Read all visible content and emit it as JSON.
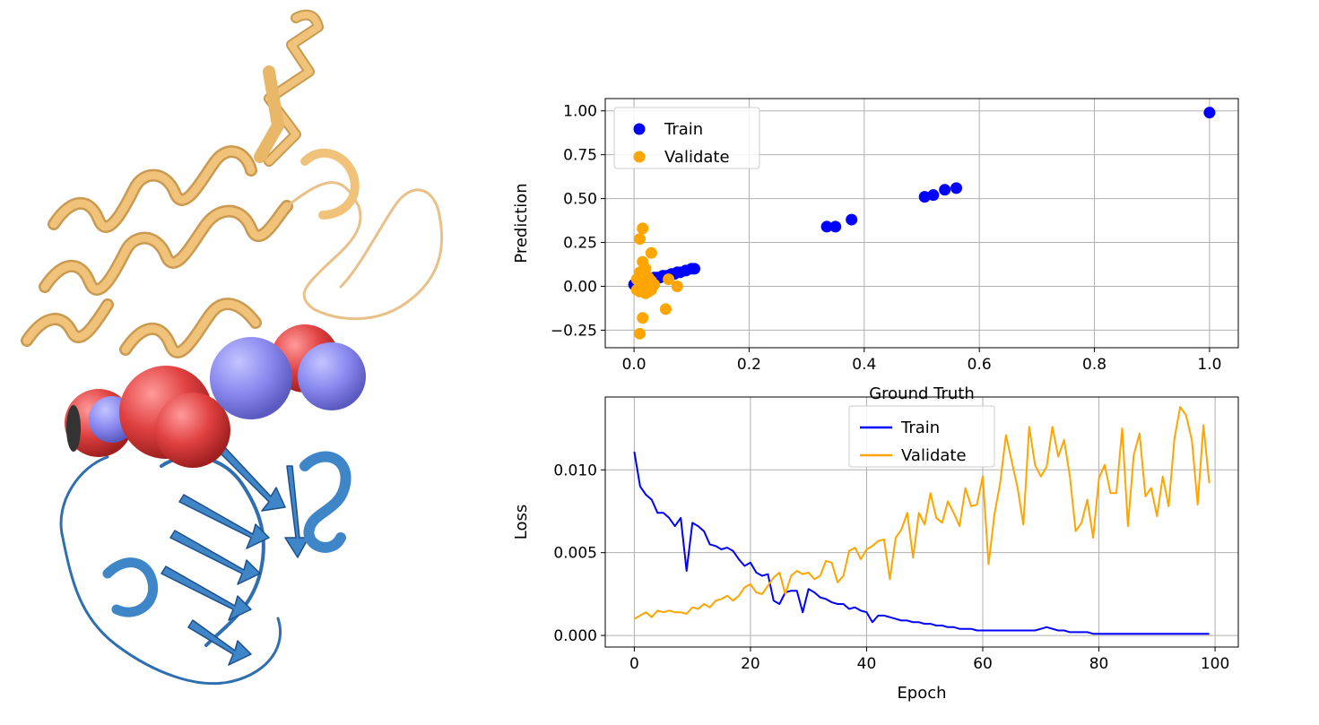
{
  "colors": {
    "train": "#0000ff",
    "validate": "#ffa500",
    "grid": "#b0b0b0",
    "protein_top": "#f0c27a",
    "protein_bottom": "#3f86c9",
    "sphere_red": "#e04040",
    "sphere_blue": "#8a8af0"
  },
  "chart_data": [
    {
      "type": "scatter",
      "xlabel": "Ground Truth",
      "ylabel": "Prediction",
      "xlim": [
        -0.05,
        1.05
      ],
      "ylim": [
        -0.35,
        1.07
      ],
      "xticks": [
        "0.0",
        "0.2",
        "0.4",
        "0.6",
        "0.8",
        "1.0"
      ],
      "xtick_values": [
        0.0,
        0.2,
        0.4,
        0.6,
        0.8,
        1.0
      ],
      "yticks": [
        "−0.25",
        "0.00",
        "0.25",
        "0.50",
        "0.75",
        "1.00"
      ],
      "ytick_values": [
        -0.25,
        0.0,
        0.25,
        0.5,
        0.75,
        1.0
      ],
      "grid": true,
      "legend": "top-left",
      "series": [
        {
          "name": "Train",
          "points": [
            [
              0.0,
              0.01
            ],
            [
              0.005,
              0.02
            ],
            [
              0.01,
              0.02
            ],
            [
              0.015,
              0.03
            ],
            [
              0.02,
              0.03
            ],
            [
              0.025,
              0.04
            ],
            [
              0.03,
              0.04
            ],
            [
              0.035,
              0.05
            ],
            [
              0.04,
              0.05
            ],
            [
              0.045,
              0.05
            ],
            [
              0.05,
              0.06
            ],
            [
              0.055,
              0.06
            ],
            [
              0.06,
              0.06
            ],
            [
              0.065,
              0.07
            ],
            [
              0.07,
              0.07
            ],
            [
              0.075,
              0.08
            ],
            [
              0.08,
              0.08
            ],
            [
              0.09,
              0.09
            ],
            [
              0.1,
              0.1
            ],
            [
              0.105,
              0.1
            ],
            [
              0.335,
              0.34
            ],
            [
              0.35,
              0.34
            ],
            [
              0.378,
              0.38
            ],
            [
              0.505,
              0.51
            ],
            [
              0.52,
              0.52
            ],
            [
              0.54,
              0.55
            ],
            [
              0.56,
              0.56
            ],
            [
              1.0,
              0.99
            ]
          ]
        },
        {
          "name": "Validate",
          "points": [
            [
              0.01,
              0.27
            ],
            [
              0.015,
              0.33
            ],
            [
              0.03,
              0.19
            ],
            [
              0.015,
              0.14
            ],
            [
              0.02,
              0.1
            ],
            [
              0.01,
              0.08
            ],
            [
              0.02,
              0.06
            ],
            [
              0.025,
              0.05
            ],
            [
              0.005,
              0.04
            ],
            [
              0.01,
              0.02
            ],
            [
              0.015,
              0.01
            ],
            [
              0.02,
              0.0
            ],
            [
              0.03,
              0.03
            ],
            [
              0.005,
              -0.02
            ],
            [
              0.01,
              -0.03
            ],
            [
              0.02,
              -0.04
            ],
            [
              0.025,
              -0.03
            ],
            [
              0.015,
              -0.18
            ],
            [
              0.01,
              -0.27
            ],
            [
              0.055,
              -0.13
            ],
            [
              0.06,
              0.04
            ],
            [
              0.075,
              0.0
            ],
            [
              0.035,
              0.01
            ],
            [
              0.03,
              -0.02
            ]
          ]
        }
      ]
    },
    {
      "type": "line",
      "xlabel": "Epoch",
      "ylabel": "Loss",
      "xlim": [
        -5,
        104
      ],
      "ylim": [
        -0.0007,
        0.0144
      ],
      "xticks": [
        "0",
        "20",
        "40",
        "60",
        "80",
        "100"
      ],
      "xtick_values": [
        0,
        20,
        40,
        60,
        80,
        100
      ],
      "yticks": [
        "0.000",
        "0.005",
        "0.010"
      ],
      "ytick_values": [
        0.0,
        0.005,
        0.01
      ],
      "grid": true,
      "legend": "top-center",
      "series": [
        {
          "name": "Train",
          "values": [
            0.0111,
            0.009,
            0.0085,
            0.0082,
            0.0074,
            0.0074,
            0.0071,
            0.0066,
            0.0071,
            0.0039,
            0.0068,
            0.0066,
            0.0063,
            0.0055,
            0.0054,
            0.0052,
            0.0053,
            0.0051,
            0.0046,
            0.0042,
            0.0044,
            0.0038,
            0.0036,
            0.0037,
            0.0021,
            0.0019,
            0.0026,
            0.0027,
            0.0027,
            0.0014,
            0.0028,
            0.0026,
            0.0023,
            0.0022,
            0.002,
            0.0019,
            0.0019,
            0.0016,
            0.0017,
            0.0015,
            0.0014,
            0.0008,
            0.0012,
            0.0012,
            0.0011,
            0.001,
            0.0009,
            0.0009,
            0.0008,
            0.0008,
            0.0007,
            0.0007,
            0.0006,
            0.0006,
            0.0005,
            0.0005,
            0.0004,
            0.0004,
            0.0004,
            0.0003,
            0.0003,
            0.0003,
            0.0003,
            0.0003,
            0.0003,
            0.0003,
            0.0003,
            0.0003,
            0.0003,
            0.0003,
            0.0004,
            0.0005,
            0.0004,
            0.0003,
            0.0003,
            0.0002,
            0.0002,
            0.0002,
            0.0002,
            0.0001,
            0.0001,
            0.0001,
            0.0001,
            0.0001,
            0.0001,
            0.0001,
            0.0001,
            0.0001,
            0.0001,
            0.0001,
            0.0001,
            0.0001,
            0.0001,
            0.0001,
            0.0001,
            0.0001,
            0.0001,
            0.0001,
            0.0001,
            0.0001
          ]
        },
        {
          "name": "Validate",
          "values": [
            0.001,
            0.0012,
            0.0014,
            0.0011,
            0.0015,
            0.0014,
            0.0015,
            0.0014,
            0.0014,
            0.0013,
            0.0017,
            0.0016,
            0.0019,
            0.0017,
            0.0021,
            0.0022,
            0.0024,
            0.0021,
            0.0024,
            0.0029,
            0.0031,
            0.0026,
            0.0025,
            0.003,
            0.0035,
            0.0038,
            0.0025,
            0.0036,
            0.0039,
            0.0037,
            0.0038,
            0.0034,
            0.0036,
            0.0045,
            0.0044,
            0.0032,
            0.0036,
            0.0051,
            0.0053,
            0.0046,
            0.0052,
            0.0054,
            0.0057,
            0.0058,
            0.0034,
            0.0059,
            0.0064,
            0.0074,
            0.0047,
            0.0074,
            0.0067,
            0.0086,
            0.0071,
            0.0068,
            0.0081,
            0.0074,
            0.0066,
            0.0089,
            0.0078,
            0.0079,
            0.0096,
            0.0043,
            0.0073,
            0.0092,
            0.0121,
            0.0105,
            0.0089,
            0.0067,
            0.0126,
            0.0103,
            0.0096,
            0.0102,
            0.0126,
            0.0108,
            0.0118,
            0.0096,
            0.0063,
            0.0068,
            0.0082,
            0.0059,
            0.0095,
            0.0103,
            0.0086,
            0.0086,
            0.0125,
            0.0066,
            0.0109,
            0.0122,
            0.0084,
            0.0089,
            0.0072,
            0.0096,
            0.0078,
            0.0119,
            0.0138,
            0.0133,
            0.0118,
            0.0079,
            0.0127,
            0.0092
          ]
        }
      ]
    }
  ]
}
